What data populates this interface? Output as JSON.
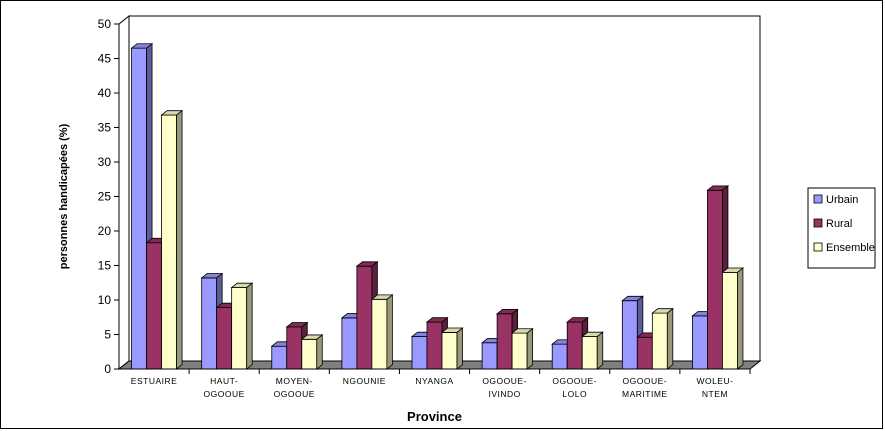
{
  "chart_data": {
    "type": "bar",
    "title": "",
    "xlabel": "Province",
    "ylabel": "personnes handicapées (%)",
    "ylim": [
      0,
      50
    ],
    "yticks": [
      0,
      5,
      10,
      15,
      20,
      25,
      30,
      35,
      40,
      45,
      50
    ],
    "grid": false,
    "legend_position": "right",
    "categories": [
      [
        "ESTUAIRE"
      ],
      [
        "HAUT-",
        "OGOOUE"
      ],
      [
        "MOYEN-",
        "OGOOUE"
      ],
      [
        "NGOUNIE"
      ],
      [
        "NYANGA"
      ],
      [
        "OGOOUE-",
        "IVINDO"
      ],
      [
        "OGOOUE-",
        "LOLO"
      ],
      [
        "OGOOUE-",
        "MARITIME"
      ],
      [
        "WOLEU-",
        "NTEM"
      ]
    ],
    "series": [
      {
        "name": "Urbain",
        "color": "#9999ff",
        "values": [
          46.5,
          13.2,
          3.3,
          7.4,
          4.7,
          3.8,
          3.6,
          9.9,
          7.7
        ]
      },
      {
        "name": "Rural",
        "color": "#993366",
        "values": [
          18.3,
          8.9,
          6.1,
          14.9,
          6.8,
          8.0,
          6.8,
          4.6,
          25.9
        ]
      },
      {
        "name": "Ensemble",
        "color": "#ffffcc",
        "values": [
          36.8,
          11.8,
          4.3,
          10.1,
          5.3,
          5.2,
          4.7,
          8.1,
          14.0
        ]
      }
    ]
  }
}
